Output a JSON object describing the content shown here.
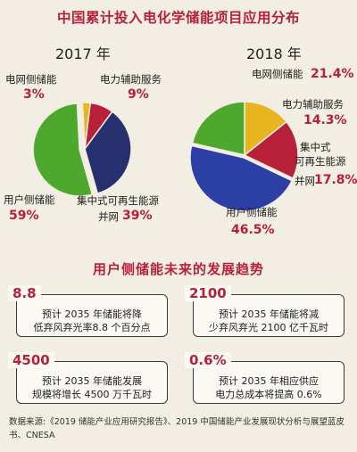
{
  "title": "中国累计投入电化学储能项目应用分布",
  "chart_data": [
    {
      "type": "pie",
      "title": "2017 年",
      "categories": [
        "电网侧储能",
        "电力辅助服务",
        "集中式可再生能源并网",
        "用户侧储能"
      ],
      "values": [
        3,
        9,
        39,
        59
      ],
      "labels": [
        "3%",
        "9%",
        "39%",
        "59%"
      ],
      "colors": [
        "#e8b51e",
        "#b81f38",
        "#27306e",
        "#4ea82e"
      ]
    },
    {
      "type": "pie",
      "title": "2018 年",
      "categories": [
        "电网侧储能",
        "电力辅助服务",
        "集中式可再生能源并网",
        "用户侧储能"
      ],
      "values": [
        21.4,
        14.3,
        17.8,
        46.5
      ],
      "labels": [
        "21.4%",
        "14.3%",
        "17.8%",
        "46.5%"
      ],
      "colors": [
        "#4ea82e",
        "#e8b51e",
        "#b81f38",
        "#2b3fa6"
      ]
    }
  ],
  "labels2017": {
    "grid": "电网侧储能",
    "aux": "电力辅助服务",
    "renew_line1": "集中式可再生能源",
    "renew_line2": "并网",
    "user": "用户侧储能"
  },
  "labels2018": {
    "grid": "电网侧储能",
    "aux": "电力辅助服务",
    "renew_line1": "集中式",
    "renew_line2": "可再生能源",
    "renew_line3": "并网",
    "user": "用户侧储能"
  },
  "subtitle": "用户侧储能未来的发展趋势",
  "boxes": [
    {
      "value": "8.8",
      "line1": "预计 2035 年储能将降",
      "line2": "低弃风弃光率8.8 个百分点"
    },
    {
      "value": "2100",
      "line1": "预计 2035 年储能将减",
      "line2": "少弃风弃光 2100 亿千瓦时"
    },
    {
      "value": "4500",
      "line1": "预计 2035 年储能发展",
      "line2": "规模将增长 4500 万千瓦时"
    },
    {
      "value": "0.6%",
      "line1": "预计 2035 年相应供应",
      "line2": "电力总成本将提高 0.6%"
    }
  ],
  "source": "数据来源:《2019 储能产业应用研究报告》、2019 中国储能产业发展现状分析与展望蓝皮书、CNESA"
}
